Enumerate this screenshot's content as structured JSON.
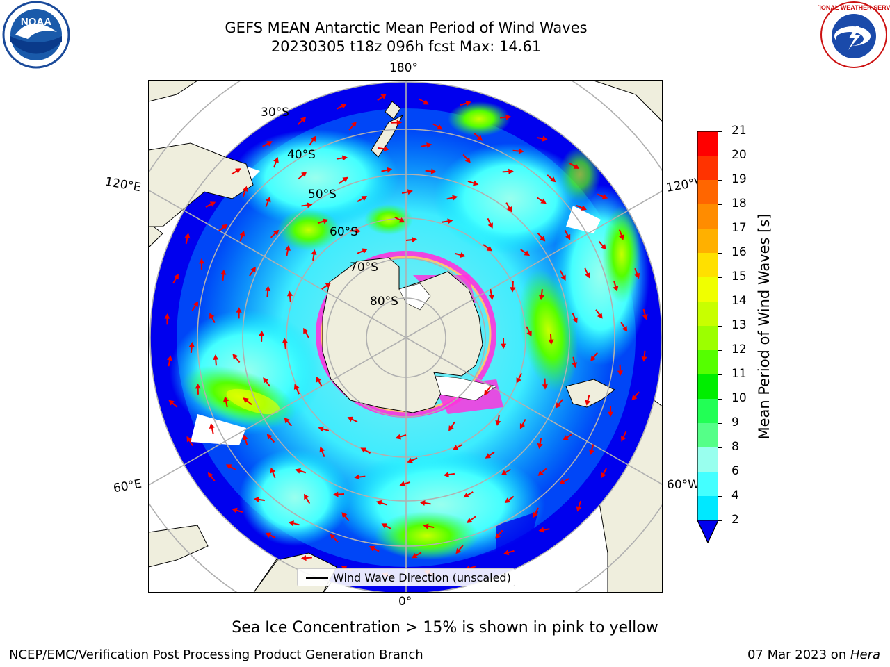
{
  "title": {
    "line1": "GEFS MEAN Antarctic Mean Period of Wind Waves",
    "line2": "20230305 t18z 096h fcst   Max: 14.61"
  },
  "longitude_labels": {
    "top": "180°",
    "bottom": "0°",
    "upper_left": "120°E",
    "upper_right": "120°W",
    "lower_left": "60°E",
    "lower_right": "60°W"
  },
  "latitude_labels": [
    "30°S",
    "40°S",
    "50°S",
    "60°S",
    "70°S",
    "80°S"
  ],
  "legend": {
    "label": "Wind Wave Direction (unscaled)"
  },
  "colorbar": {
    "label": "Mean Period of Wind Waves [s]",
    "ticks": [
      "21",
      "20",
      "19",
      "18",
      "17",
      "16",
      "15",
      "14",
      "13",
      "12",
      "11",
      "10",
      "9",
      "8",
      "6",
      "4",
      "2"
    ],
    "colors": [
      "#ff0000",
      "#ff3300",
      "#ff6600",
      "#ff8c00",
      "#ffb000",
      "#ffe000",
      "#f0ff00",
      "#c8ff00",
      "#9cff00",
      "#55ff00",
      "#00ee00",
      "#22ff55",
      "#55ff88",
      "#99ffee",
      "#44ffff",
      "#00e8ff",
      "#0080ff",
      "#0000ee"
    ]
  },
  "note": "Sea Ice Concentration > 15% is shown in pink to yellow",
  "footer": {
    "left": "NCEP/EMC/Verification Post Processing Product Generation Branch",
    "right_date": "07 Mar 2023 on ",
    "right_machine": "Hera"
  },
  "logos": {
    "left": "NOAA",
    "right": "NATIONAL WEATHER SERVICE"
  },
  "colors": {
    "land": "#efeedd",
    "ocean_base": "#0000ee",
    "arrow": "#ee0000",
    "grid": "#b0b0b0"
  }
}
